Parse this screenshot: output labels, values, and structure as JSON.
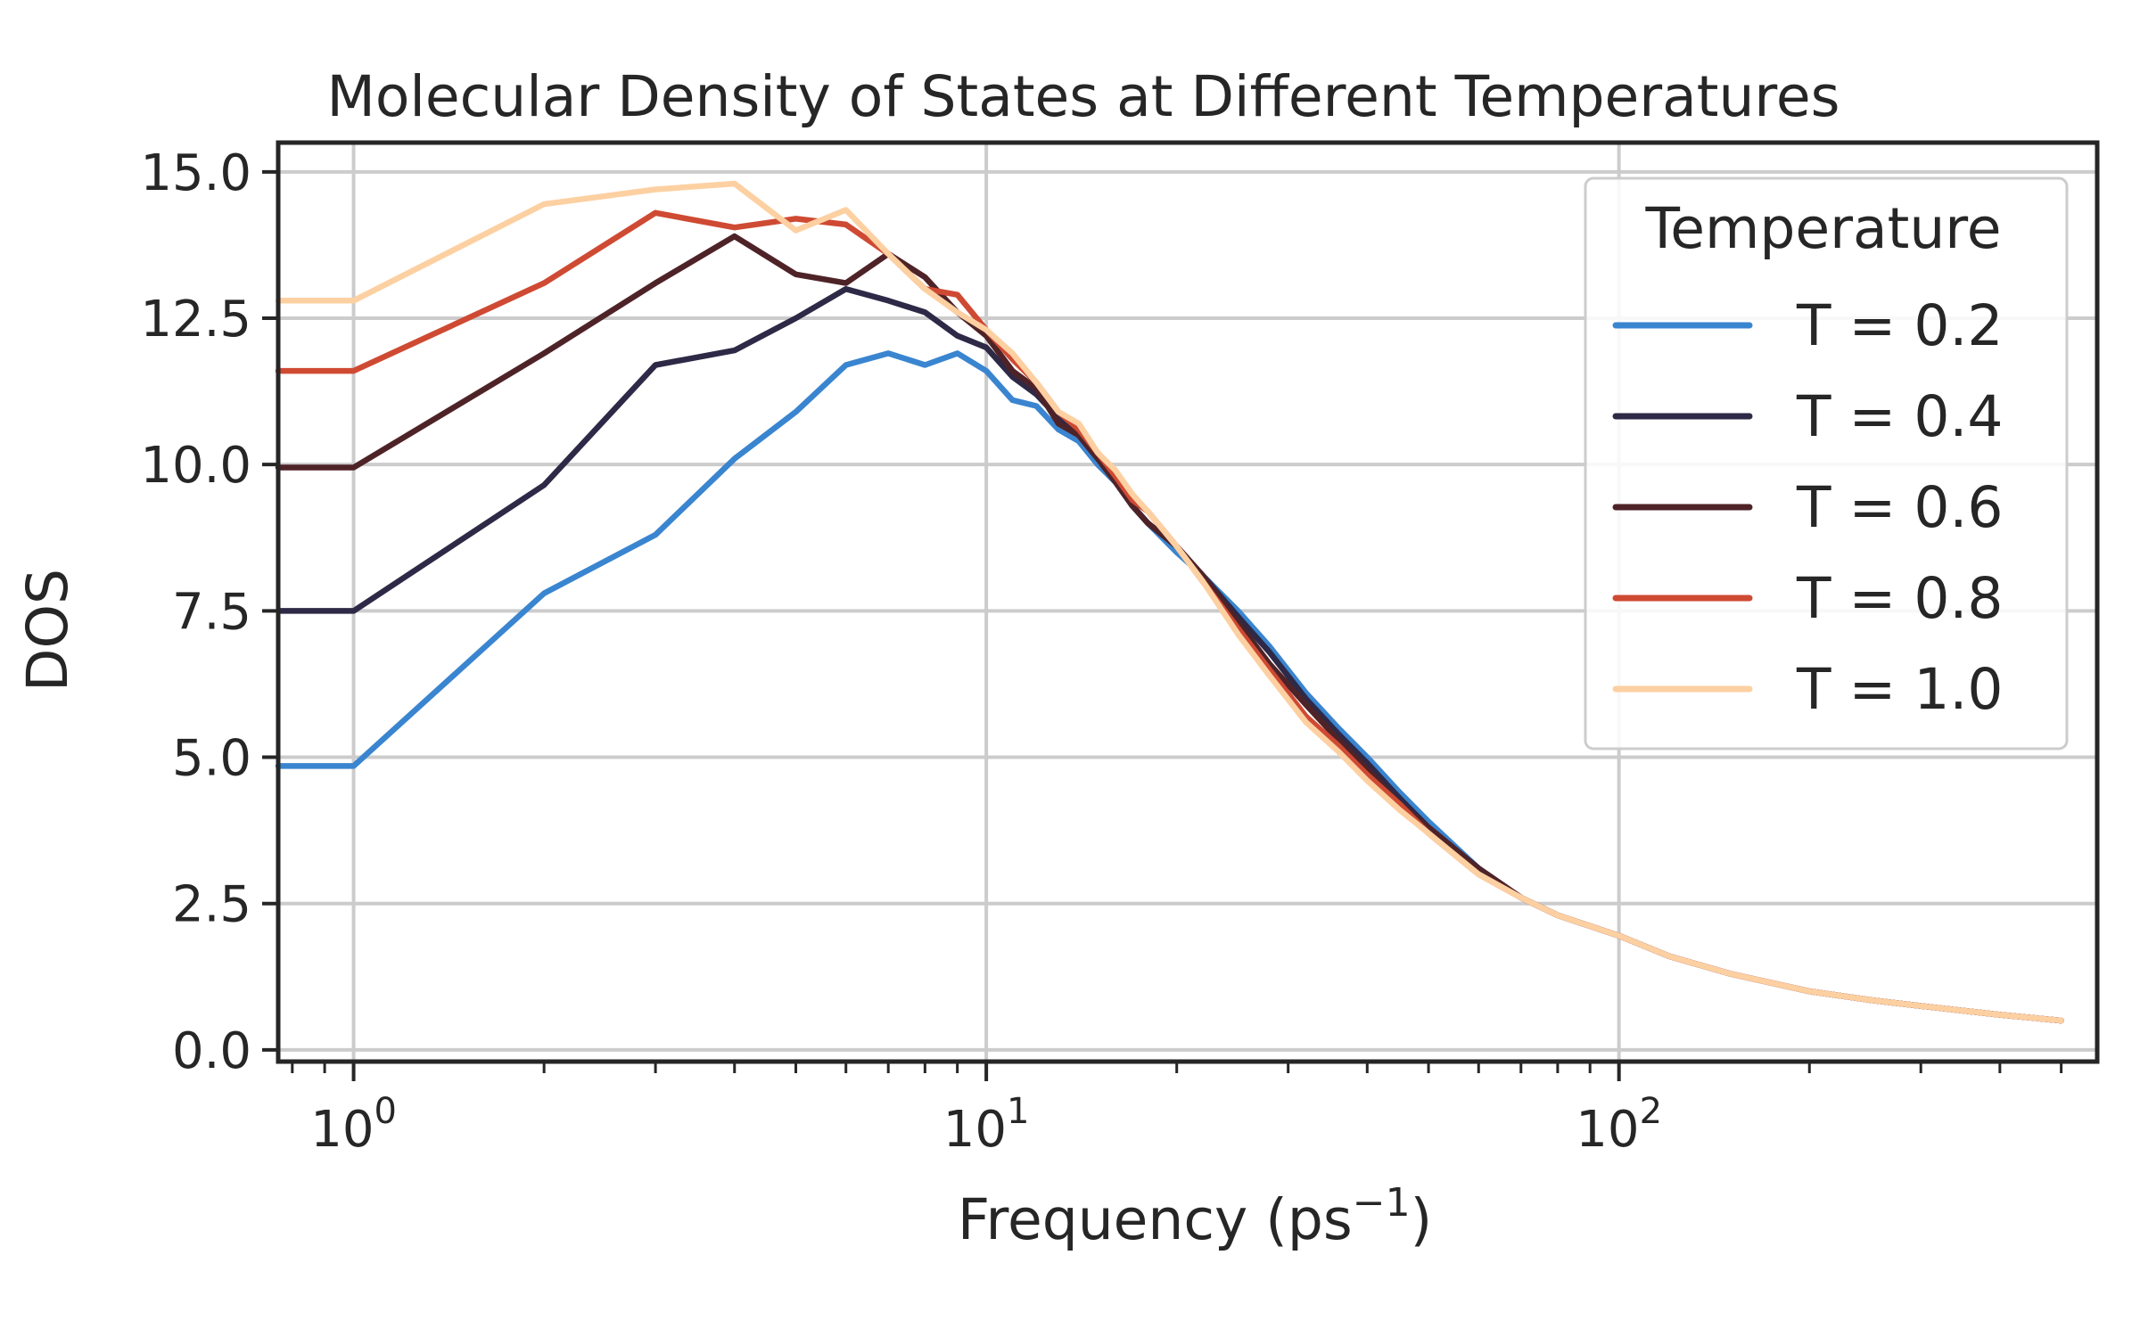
{
  "chart_data": {
    "type": "line",
    "title": "Molecular Density of States at Different Temperatures",
    "xlabel_main": "Frequency (ps",
    "xlabel_sup": "−1",
    "xlabel_end": ")",
    "ylabel": "DOS",
    "xscale": "log",
    "xlim": [
      0.76,
      570
    ],
    "ylim": [
      -0.2,
      15.5
    ],
    "yticks": [
      0.0,
      2.5,
      5.0,
      7.5,
      10.0,
      12.5,
      15.0
    ],
    "ytick_labels": [
      "0.0",
      "2.5",
      "5.0",
      "7.5",
      "10.0",
      "12.5",
      "15.0"
    ],
    "xticks_major": [
      {
        "value": 1,
        "base": "10",
        "exp": "0"
      },
      {
        "value": 10,
        "base": "10",
        "exp": "1"
      },
      {
        "value": 100,
        "base": "10",
        "exp": "2"
      }
    ],
    "grid": true,
    "legend": {
      "title": "Temperature",
      "placement": "top-right"
    },
    "series": [
      {
        "name": "T = 0.2",
        "color": "#3a85d0",
        "x": [
          0.76,
          1,
          2,
          3,
          4,
          5,
          6,
          7,
          8,
          9,
          10,
          11,
          12,
          13,
          14,
          15,
          16,
          17,
          18,
          20,
          22,
          25,
          28,
          32,
          36,
          40,
          45,
          50,
          60,
          70,
          80,
          100,
          120,
          150,
          200,
          250,
          300,
          400,
          500
        ],
        "y": [
          4.85,
          4.85,
          7.8,
          8.8,
          10.1,
          10.9,
          11.7,
          11.9,
          11.7,
          11.9,
          11.6,
          11.1,
          11.0,
          10.6,
          10.4,
          10.0,
          9.7,
          9.3,
          9.0,
          8.5,
          8.1,
          7.5,
          6.9,
          6.1,
          5.5,
          5.0,
          4.4,
          3.9,
          3.1,
          2.6,
          2.3,
          1.95,
          1.6,
          1.3,
          1.0,
          0.85,
          0.75,
          0.6,
          0.5
        ]
      },
      {
        "name": "T = 0.4",
        "color": "#2e2946",
        "x": [
          0.76,
          1,
          2,
          3,
          4,
          5,
          6,
          7,
          8,
          9,
          10,
          11,
          12,
          13,
          14,
          15,
          16,
          17,
          18,
          20,
          22,
          25,
          28,
          32,
          36,
          40,
          45,
          50,
          60,
          70,
          80,
          100,
          120,
          150,
          200,
          250,
          300,
          400,
          500
        ],
        "y": [
          7.5,
          7.5,
          9.65,
          11.7,
          11.95,
          12.5,
          13.0,
          12.8,
          12.6,
          12.2,
          12.0,
          11.5,
          11.2,
          10.8,
          10.5,
          10.1,
          9.8,
          9.3,
          9.0,
          8.6,
          8.1,
          7.4,
          6.8,
          6.0,
          5.4,
          4.9,
          4.3,
          3.8,
          3.1,
          2.6,
          2.3,
          1.95,
          1.6,
          1.3,
          1.0,
          0.85,
          0.75,
          0.6,
          0.5
        ]
      },
      {
        "name": "T = 0.6",
        "color": "#4e2328",
        "x": [
          0.76,
          1,
          2,
          3,
          4,
          5,
          6,
          7,
          8,
          9,
          10,
          11,
          12,
          13,
          14,
          15,
          16,
          17,
          18,
          20,
          22,
          25,
          28,
          32,
          36,
          40,
          45,
          50,
          60,
          70,
          80,
          100,
          120,
          150,
          200,
          250,
          300,
          400,
          500
        ],
        "y": [
          9.95,
          9.95,
          11.9,
          13.1,
          13.9,
          13.25,
          13.1,
          13.6,
          13.2,
          12.6,
          12.2,
          11.6,
          11.3,
          10.7,
          10.5,
          10.1,
          9.7,
          9.3,
          9.0,
          8.6,
          8.1,
          7.3,
          6.6,
          5.9,
          5.3,
          4.8,
          4.2,
          3.8,
          3.1,
          2.6,
          2.3,
          1.95,
          1.6,
          1.3,
          1.0,
          0.85,
          0.75,
          0.6,
          0.5
        ]
      },
      {
        "name": "T = 0.8",
        "color": "#cf4a33",
        "x": [
          0.76,
          1,
          2,
          3,
          4,
          5,
          6,
          7,
          8,
          9,
          10,
          11,
          12,
          13,
          14,
          15,
          16,
          17,
          18,
          20,
          22,
          25,
          28,
          32,
          36,
          40,
          45,
          50,
          60,
          70,
          80,
          100,
          120,
          150,
          200,
          250,
          300,
          400,
          500
        ],
        "y": [
          11.6,
          11.6,
          13.1,
          14.3,
          14.05,
          14.2,
          14.1,
          13.6,
          13.0,
          12.9,
          12.3,
          11.8,
          11.4,
          10.9,
          10.6,
          10.2,
          9.8,
          9.4,
          9.2,
          8.6,
          8.0,
          7.2,
          6.5,
          5.7,
          5.2,
          4.7,
          4.2,
          3.7,
          3.0,
          2.6,
          2.3,
          1.95,
          1.6,
          1.3,
          1.0,
          0.85,
          0.75,
          0.6,
          0.5
        ]
      },
      {
        "name": "T = 1.0",
        "color": "#fdd0a2",
        "x": [
          0.76,
          1,
          2,
          3,
          4,
          5,
          6,
          7,
          8,
          9,
          10,
          11,
          12,
          13,
          14,
          15,
          16,
          17,
          18,
          20,
          22,
          25,
          28,
          32,
          36,
          40,
          45,
          50,
          60,
          70,
          80,
          100,
          120,
          150,
          200,
          250,
          300,
          400,
          500
        ],
        "y": [
          12.8,
          12.8,
          14.45,
          14.7,
          14.8,
          14.0,
          14.35,
          13.6,
          13.0,
          12.6,
          12.3,
          11.9,
          11.4,
          10.9,
          10.7,
          10.2,
          9.9,
          9.5,
          9.2,
          8.6,
          8.0,
          7.1,
          6.4,
          5.6,
          5.1,
          4.6,
          4.1,
          3.7,
          3.0,
          2.6,
          2.3,
          1.95,
          1.6,
          1.3,
          1.0,
          0.85,
          0.75,
          0.6,
          0.5
        ]
      }
    ]
  }
}
